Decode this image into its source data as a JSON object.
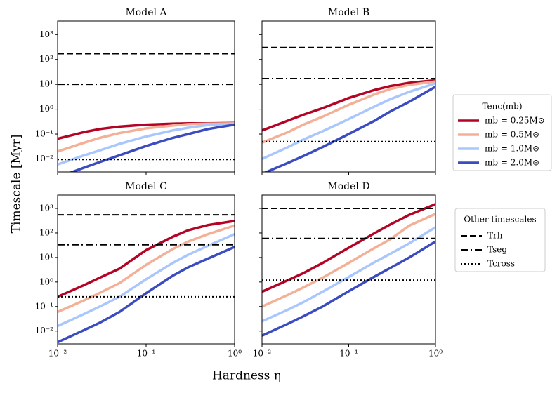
{
  "xlabel": "Hardness η",
  "ylabel": "Timescale [Myr]",
  "legend": {
    "title": "Tenc(mb)",
    "entries": [
      {
        "name": "mb = 0.25M⊙",
        "color": "#b40426"
      },
      {
        "name": "mb = 0.5M⊙",
        "color": "#f4b096"
      },
      {
        "name": "mb = 1.0M⊙",
        "color": "#aac7fd"
      },
      {
        "name": "mb = 2.0M⊙",
        "color": "#3b4cc0"
      }
    ]
  },
  "hline_legend": {
    "title": "Other timescales",
    "entries": [
      {
        "name": "Trh",
        "style": "dashed"
      },
      {
        "name": "Tseg",
        "style": "dashdot"
      },
      {
        "name": "Tcross",
        "style": "dotted"
      }
    ]
  },
  "chart_data": [
    {
      "type": "line",
      "title": "Model A",
      "log": true,
      "x": [
        0.01,
        0.02,
        0.03,
        0.05,
        0.1,
        0.2,
        0.3,
        0.5,
        1
      ],
      "series": [
        {
          "values": [
            0.065,
            0.12,
            0.16,
            0.2,
            0.24,
            0.26,
            0.27,
            0.27,
            0.28
          ]
        },
        {
          "values": [
            0.02,
            0.045,
            0.07,
            0.11,
            0.17,
            0.22,
            0.25,
            0.26,
            0.27
          ]
        },
        {
          "values": [
            0.006,
            0.014,
            0.022,
            0.04,
            0.08,
            0.14,
            0.18,
            0.23,
            0.26
          ]
        },
        {
          "values": [
            0.0018,
            0.0045,
            0.0075,
            0.014,
            0.033,
            0.07,
            0.1,
            0.16,
            0.24
          ]
        }
      ],
      "hlines": [
        170,
        10,
        0.0095
      ],
      "xlim": [
        0.01,
        1
      ],
      "ylim": [
        0.003,
        3500
      ],
      "xticks": [
        0.01,
        0.1,
        1
      ],
      "yticks": [
        {
          "value": 0.01,
          "label": "10⁻²"
        },
        {
          "value": 0.1,
          "label": "10⁻¹"
        },
        {
          "value": 1,
          "label": "10⁰"
        },
        {
          "value": 10,
          "label": "10¹"
        },
        {
          "value": 100,
          "label": "10²"
        },
        {
          "value": 1000,
          "label": "10³"
        }
      ]
    },
    {
      "type": "line",
      "title": "Model B",
      "log": true,
      "x": [
        0.01,
        0.02,
        0.03,
        0.05,
        0.1,
        0.2,
        0.3,
        0.5,
        1
      ],
      "series": [
        {
          "values": [
            0.14,
            0.35,
            0.6,
            1.1,
            2.8,
            6,
            8.5,
            11.5,
            14.5
          ]
        },
        {
          "values": [
            0.045,
            0.12,
            0.24,
            0.5,
            1.5,
            4,
            6.5,
            9.5,
            13
          ]
        },
        {
          "values": [
            0.01,
            0.03,
            0.06,
            0.13,
            0.4,
            1.3,
            2.5,
            5,
            11
          ]
        },
        {
          "values": [
            0.0025,
            0.007,
            0.013,
            0.03,
            0.1,
            0.35,
            0.8,
            2,
            8
          ]
        }
      ],
      "hlines": [
        300,
        17,
        0.05
      ],
      "xlim": [
        0.01,
        1
      ],
      "ylim": [
        0.003,
        3500
      ],
      "xticks": [
        0.01,
        0.1,
        1
      ],
      "yticks": [
        0.01,
        0.1,
        1,
        10,
        100,
        1000
      ]
    },
    {
      "type": "line",
      "title": "Model C",
      "log": true,
      "x": [
        0.01,
        0.02,
        0.03,
        0.05,
        0.1,
        0.2,
        0.3,
        0.5,
        1
      ],
      "series": [
        {
          "values": [
            0.25,
            0.75,
            1.5,
            3.5,
            20,
            70,
            130,
            210,
            310
          ]
        },
        {
          "values": [
            0.06,
            0.18,
            0.36,
            0.9,
            5,
            22,
            45,
            90,
            200
          ]
        },
        {
          "values": [
            0.016,
            0.05,
            0.1,
            0.25,
            1.3,
            6,
            13,
            30,
            90
          ]
        },
        {
          "values": [
            0.0035,
            0.011,
            0.022,
            0.06,
            0.35,
            1.8,
            4,
            9,
            27
          ]
        }
      ],
      "hlines": [
        550,
        33,
        0.25
      ],
      "xlim": [
        0.01,
        1
      ],
      "ylim": [
        0.003,
        3500
      ],
      "xticks": [
        {
          "value": 0.01,
          "label": "10⁻²"
        },
        {
          "value": 0.1,
          "label": "10⁻¹"
        },
        {
          "value": 1,
          "label": "10⁰"
        }
      ],
      "yticks": [
        {
          "value": 0.01,
          "label": "10⁻²"
        },
        {
          "value": 0.1,
          "label": "10⁻¹"
        },
        {
          "value": 1,
          "label": "10⁰"
        },
        {
          "value": 10,
          "label": "10¹"
        },
        {
          "value": 100,
          "label": "10²"
        },
        {
          "value": 1000,
          "label": "10³"
        }
      ]
    },
    {
      "type": "line",
      "title": "Model D",
      "log": true,
      "x": [
        0.01,
        0.02,
        0.03,
        0.05,
        0.1,
        0.2,
        0.3,
        0.5,
        1
      ],
      "series": [
        {
          "values": [
            0.4,
            1.2,
            2.3,
            6,
            25,
            100,
            220,
            550,
            1500
          ]
        },
        {
          "values": [
            0.1,
            0.3,
            0.6,
            1.5,
            6,
            25,
            55,
            200,
            600
          ]
        },
        {
          "values": [
            0.025,
            0.075,
            0.15,
            0.4,
            1.6,
            6.5,
            14,
            38,
            170
          ]
        },
        {
          "values": [
            0.0065,
            0.02,
            0.04,
            0.1,
            0.42,
            1.7,
            3.7,
            10,
            45
          ]
        }
      ],
      "hlines": [
        1000,
        60,
        1.2
      ],
      "xlim": [
        0.01,
        1
      ],
      "ylim": [
        0.003,
        3500
      ],
      "xticks": [
        {
          "value": 0.01,
          "label": "10⁻²"
        },
        {
          "value": 0.1,
          "label": "10⁻¹"
        },
        {
          "value": 1,
          "label": "10⁰"
        }
      ],
      "yticks": [
        0.01,
        0.1,
        1,
        10,
        100,
        1000
      ]
    }
  ]
}
